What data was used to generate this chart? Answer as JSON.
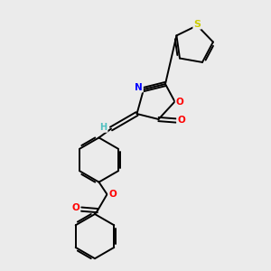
{
  "background_color": "#ebebeb",
  "bond_color": "#000000",
  "atom_colors": {
    "S": "#cccc00",
    "N": "#0000ff",
    "O": "#ff0000",
    "C": "#000000",
    "H": "#4fc0c0"
  }
}
